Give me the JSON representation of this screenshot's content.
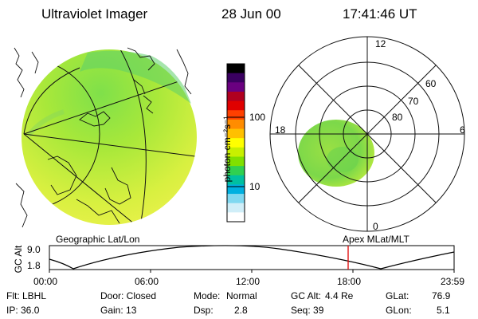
{
  "header": {
    "instrument": "Ultraviolet Imager",
    "date": "28 Jun 00",
    "time": "17:41:46 UT"
  },
  "colorbar": {
    "unit_label": "photon cm⁻²s⁻¹",
    "ticks": [
      "100",
      "10"
    ],
    "scale": "log",
    "colors": [
      "#000000",
      "#3a0060",
      "#6a0080",
      "#b00020",
      "#e00000",
      "#ff4000",
      "#ff8c00",
      "#ffc000",
      "#ffff00",
      "#c8f000",
      "#80e000",
      "#30d050",
      "#00c0a0",
      "#00b0e0",
      "#80d8f0",
      "#d0eef8",
      "#ffffff"
    ]
  },
  "labels": {
    "left_map": "Geographic Lat/Lon",
    "right_map": "Apex MLat/MLT"
  },
  "polar_plot": {
    "mlt_labels": [
      "12",
      "18",
      "6",
      "0"
    ],
    "lat_labels": [
      "60",
      "70",
      "80"
    ]
  },
  "timeline": {
    "axis_label": "GC Alt",
    "y_ticks": [
      "9.0",
      "1.8"
    ],
    "x_ticks": [
      "00:00",
      "06:00",
      "12:00",
      "18:00",
      "23:59"
    ],
    "marker_time": "17:41",
    "marker_color": "#e00000"
  },
  "status": {
    "filter": "Flt: LBHL",
    "door": "Door: Closed",
    "mode_label": "Mode:",
    "mode_value": "Normal",
    "gc_alt_label": "GC Alt:",
    "gc_alt_value": "4.4 Re",
    "glat_label": "GLat:",
    "glat_value": "76.9",
    "ip": "IP: 36.0",
    "gain": "Gain: 13",
    "dsp_label": "Dsp:",
    "dsp_value": "2.8",
    "seq": "Seq: 39",
    "glon_label": "GLon:",
    "glon_value": "5.1"
  }
}
